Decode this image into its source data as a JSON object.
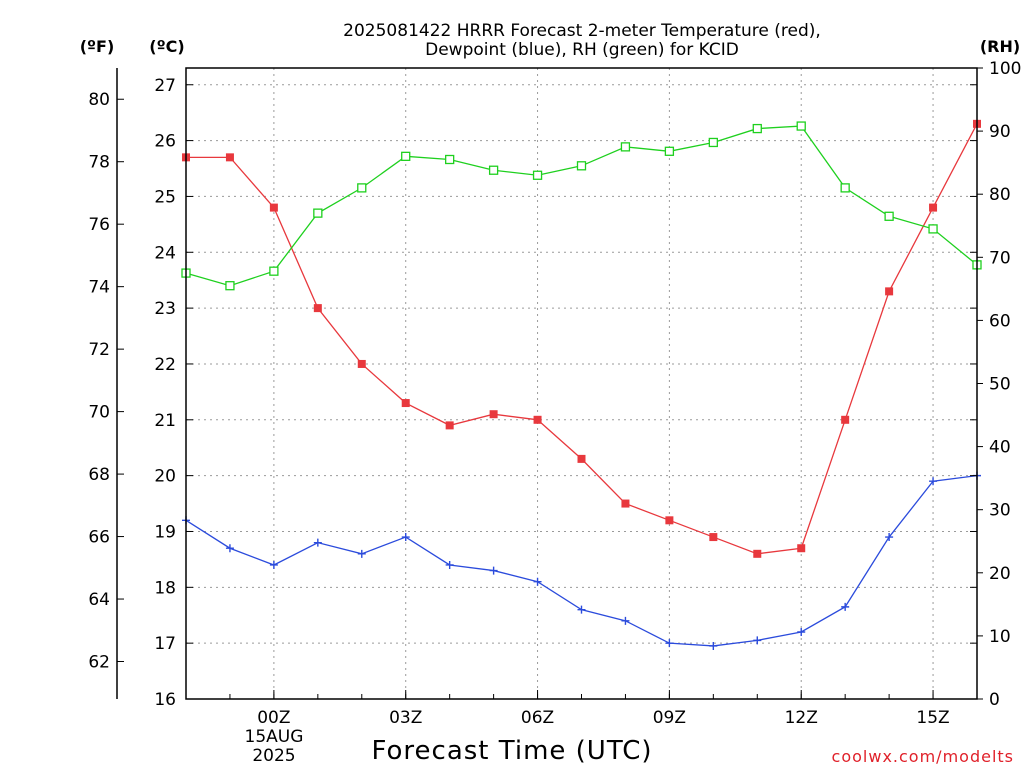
{
  "chart_data": {
    "type": "line",
    "title_lines": [
      "2025081422 HRRR Forecast 2-meter Temperature (red),",
      "Dewpoint (blue), RH (green) for KCID"
    ],
    "xlabel": "Forecast Time (UTC)",
    "x": [
      "22Z",
      "23Z",
      "00Z",
      "01Z",
      "02Z",
      "03Z",
      "04Z",
      "05Z",
      "06Z",
      "07Z",
      "08Z",
      "09Z",
      "10Z",
      "11Z",
      "12Z",
      "13Z",
      "14Z",
      "15Z",
      "16Z"
    ],
    "x_ticks": [
      {
        "index": 2,
        "label": "00Z"
      },
      {
        "index": 5,
        "label": "03Z"
      },
      {
        "index": 8,
        "label": "06Z"
      },
      {
        "index": 11,
        "label": "09Z"
      },
      {
        "index": 14,
        "label": "12Z"
      },
      {
        "index": 17,
        "label": "15Z"
      }
    ],
    "x_date_label": [
      "15AUG",
      "2025"
    ],
    "left_outer_axis": {
      "unit": "(ºF)",
      "range": [
        60.8,
        81.0
      ],
      "ticks": [
        62,
        64,
        66,
        68,
        70,
        72,
        74,
        76,
        78,
        80
      ]
    },
    "left_axis": {
      "unit": "(ºC)",
      "range": [
        16,
        27.3
      ],
      "ticks": [
        16,
        17,
        18,
        19,
        20,
        21,
        22,
        23,
        24,
        25,
        26,
        27
      ]
    },
    "right_axis": {
      "unit": "(RH)",
      "range": [
        0,
        100
      ],
      "ticks": [
        0,
        10,
        20,
        30,
        40,
        50,
        60,
        70,
        80,
        90,
        100
      ]
    },
    "grid": true,
    "series": [
      {
        "name": "Temperature",
        "axis": "celsius",
        "color": "#e8383d",
        "marker": "filled-square",
        "values": [
          25.7,
          25.7,
          24.8,
          23.0,
          22.0,
          21.3,
          20.9,
          21.1,
          21.0,
          20.3,
          19.5,
          19.2,
          18.9,
          18.6,
          18.7,
          21.0,
          23.3,
          24.8,
          26.3
        ]
      },
      {
        "name": "Dewpoint",
        "axis": "celsius",
        "color": "#2b4bdc",
        "marker": "plus",
        "values": [
          19.2,
          18.7,
          18.4,
          18.8,
          18.6,
          18.9,
          18.4,
          18.3,
          18.1,
          17.6,
          17.4,
          17.0,
          16.95,
          17.05,
          17.2,
          17.65,
          18.9,
          19.9,
          20.0
        ]
      },
      {
        "name": "RH",
        "axis": "rh",
        "color": "#1ed01e",
        "marker": "open-square",
        "values": [
          67.5,
          65.5,
          67.8,
          77.0,
          81.0,
          86.0,
          85.5,
          83.8,
          83.0,
          84.5,
          87.5,
          86.8,
          88.2,
          90.4,
          90.8,
          81.0,
          76.5,
          74.5,
          68.8
        ]
      }
    ]
  },
  "credit": "coolwx.com/modelts"
}
